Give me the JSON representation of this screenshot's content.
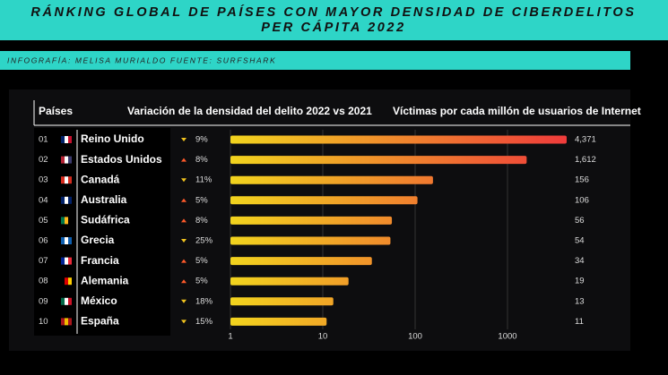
{
  "chart_data": {
    "type": "bar",
    "orientation": "horizontal",
    "title": "RÁNKING GLOBAL DE PAÍSES CON MAYOR DENSIDAD DE CIBERDELITOS PER CÁPITA 2022",
    "subtitle": "INFOGRAFÍA: MELISA MURIALDO FUENTE: SURFSHARK",
    "headers": [
      "Países",
      "Variación de la densidad del delito 2022 vs 2021",
      "Víctimas por cada millón de usuarios de Internet"
    ],
    "ranks": [
      "01",
      "02",
      "03",
      "04",
      "05",
      "06",
      "07",
      "08",
      "09",
      "10"
    ],
    "categories": [
      "Reino Unido",
      "Estados Unidos",
      "Canadá",
      "Australia",
      "Sudáfrica",
      "Grecia",
      "Francia",
      "Alemania",
      "México",
      "España"
    ],
    "changes": [
      "9%",
      "8%",
      "11%",
      "5%",
      "8%",
      "25%",
      "5%",
      "5%",
      "18%",
      "15%"
    ],
    "change_directions": [
      "down",
      "up",
      "down",
      "up",
      "up",
      "down",
      "up",
      "up",
      "down",
      "down"
    ],
    "values": [
      4371,
      1612,
      156,
      106,
      56,
      54,
      34,
      19,
      13,
      11
    ],
    "value_labels": [
      "4,371",
      "1,612",
      "156",
      "106",
      "56",
      "54",
      "34",
      "19",
      "13",
      "11"
    ],
    "xscale": "log",
    "xlim": [
      1,
      10000
    ],
    "xticks": [
      1,
      10,
      100,
      1000
    ],
    "grid": true,
    "color_start": "#f2d41e",
    "color_end": "#ef3b3b"
  }
}
